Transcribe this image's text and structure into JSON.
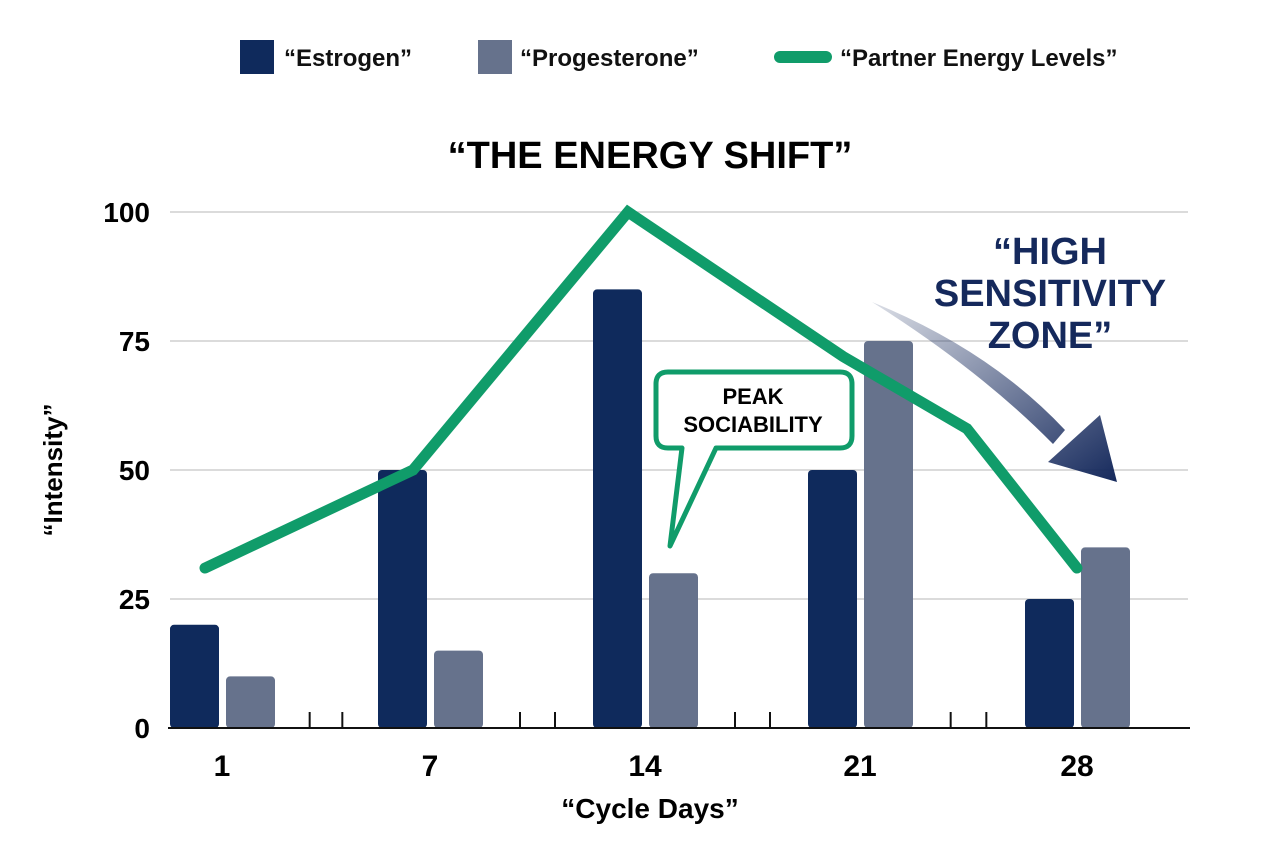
{
  "chart_data": {
    "type": "bar",
    "title": "“THE ENERGY SHIFT”",
    "xlabel": "“Cycle Days”",
    "ylabel": "“Intensity”",
    "ylim": [
      0,
      100
    ],
    "yticks": [
      "0",
      "25",
      "50",
      "75",
      "100"
    ],
    "categories": [
      "1",
      "7",
      "14",
      "21",
      "28"
    ],
    "grid": true,
    "legend_position": "top-right",
    "series": [
      {
        "name": "“Estrogen”",
        "kind": "bar",
        "color": "#0f2a5c",
        "values": [
          20,
          50,
          85,
          50,
          25
        ]
      },
      {
        "name": "“Progesterone”",
        "kind": "bar",
        "color": "#66728c",
        "values": [
          10,
          15,
          30,
          75,
          35
        ]
      },
      {
        "name": "“Partner Energy Levels”",
        "kind": "line",
        "color": "#109c6a",
        "points": [
          [
            1,
            31
          ],
          [
            7,
            50
          ],
          [
            14,
            100
          ],
          [
            21,
            72
          ],
          [
            25,
            58
          ],
          [
            28,
            31
          ]
        ]
      }
    ],
    "annotations": [
      {
        "text_lines": [
          "PEAK",
          "SOCIABILITY"
        ],
        "style": "callout",
        "color": "#109c6a"
      },
      {
        "text_lines": [
          "“HIGH",
          "SENSITIVITY",
          "ZONE”"
        ],
        "style": "arrow-label",
        "color": "#15295c"
      }
    ]
  }
}
